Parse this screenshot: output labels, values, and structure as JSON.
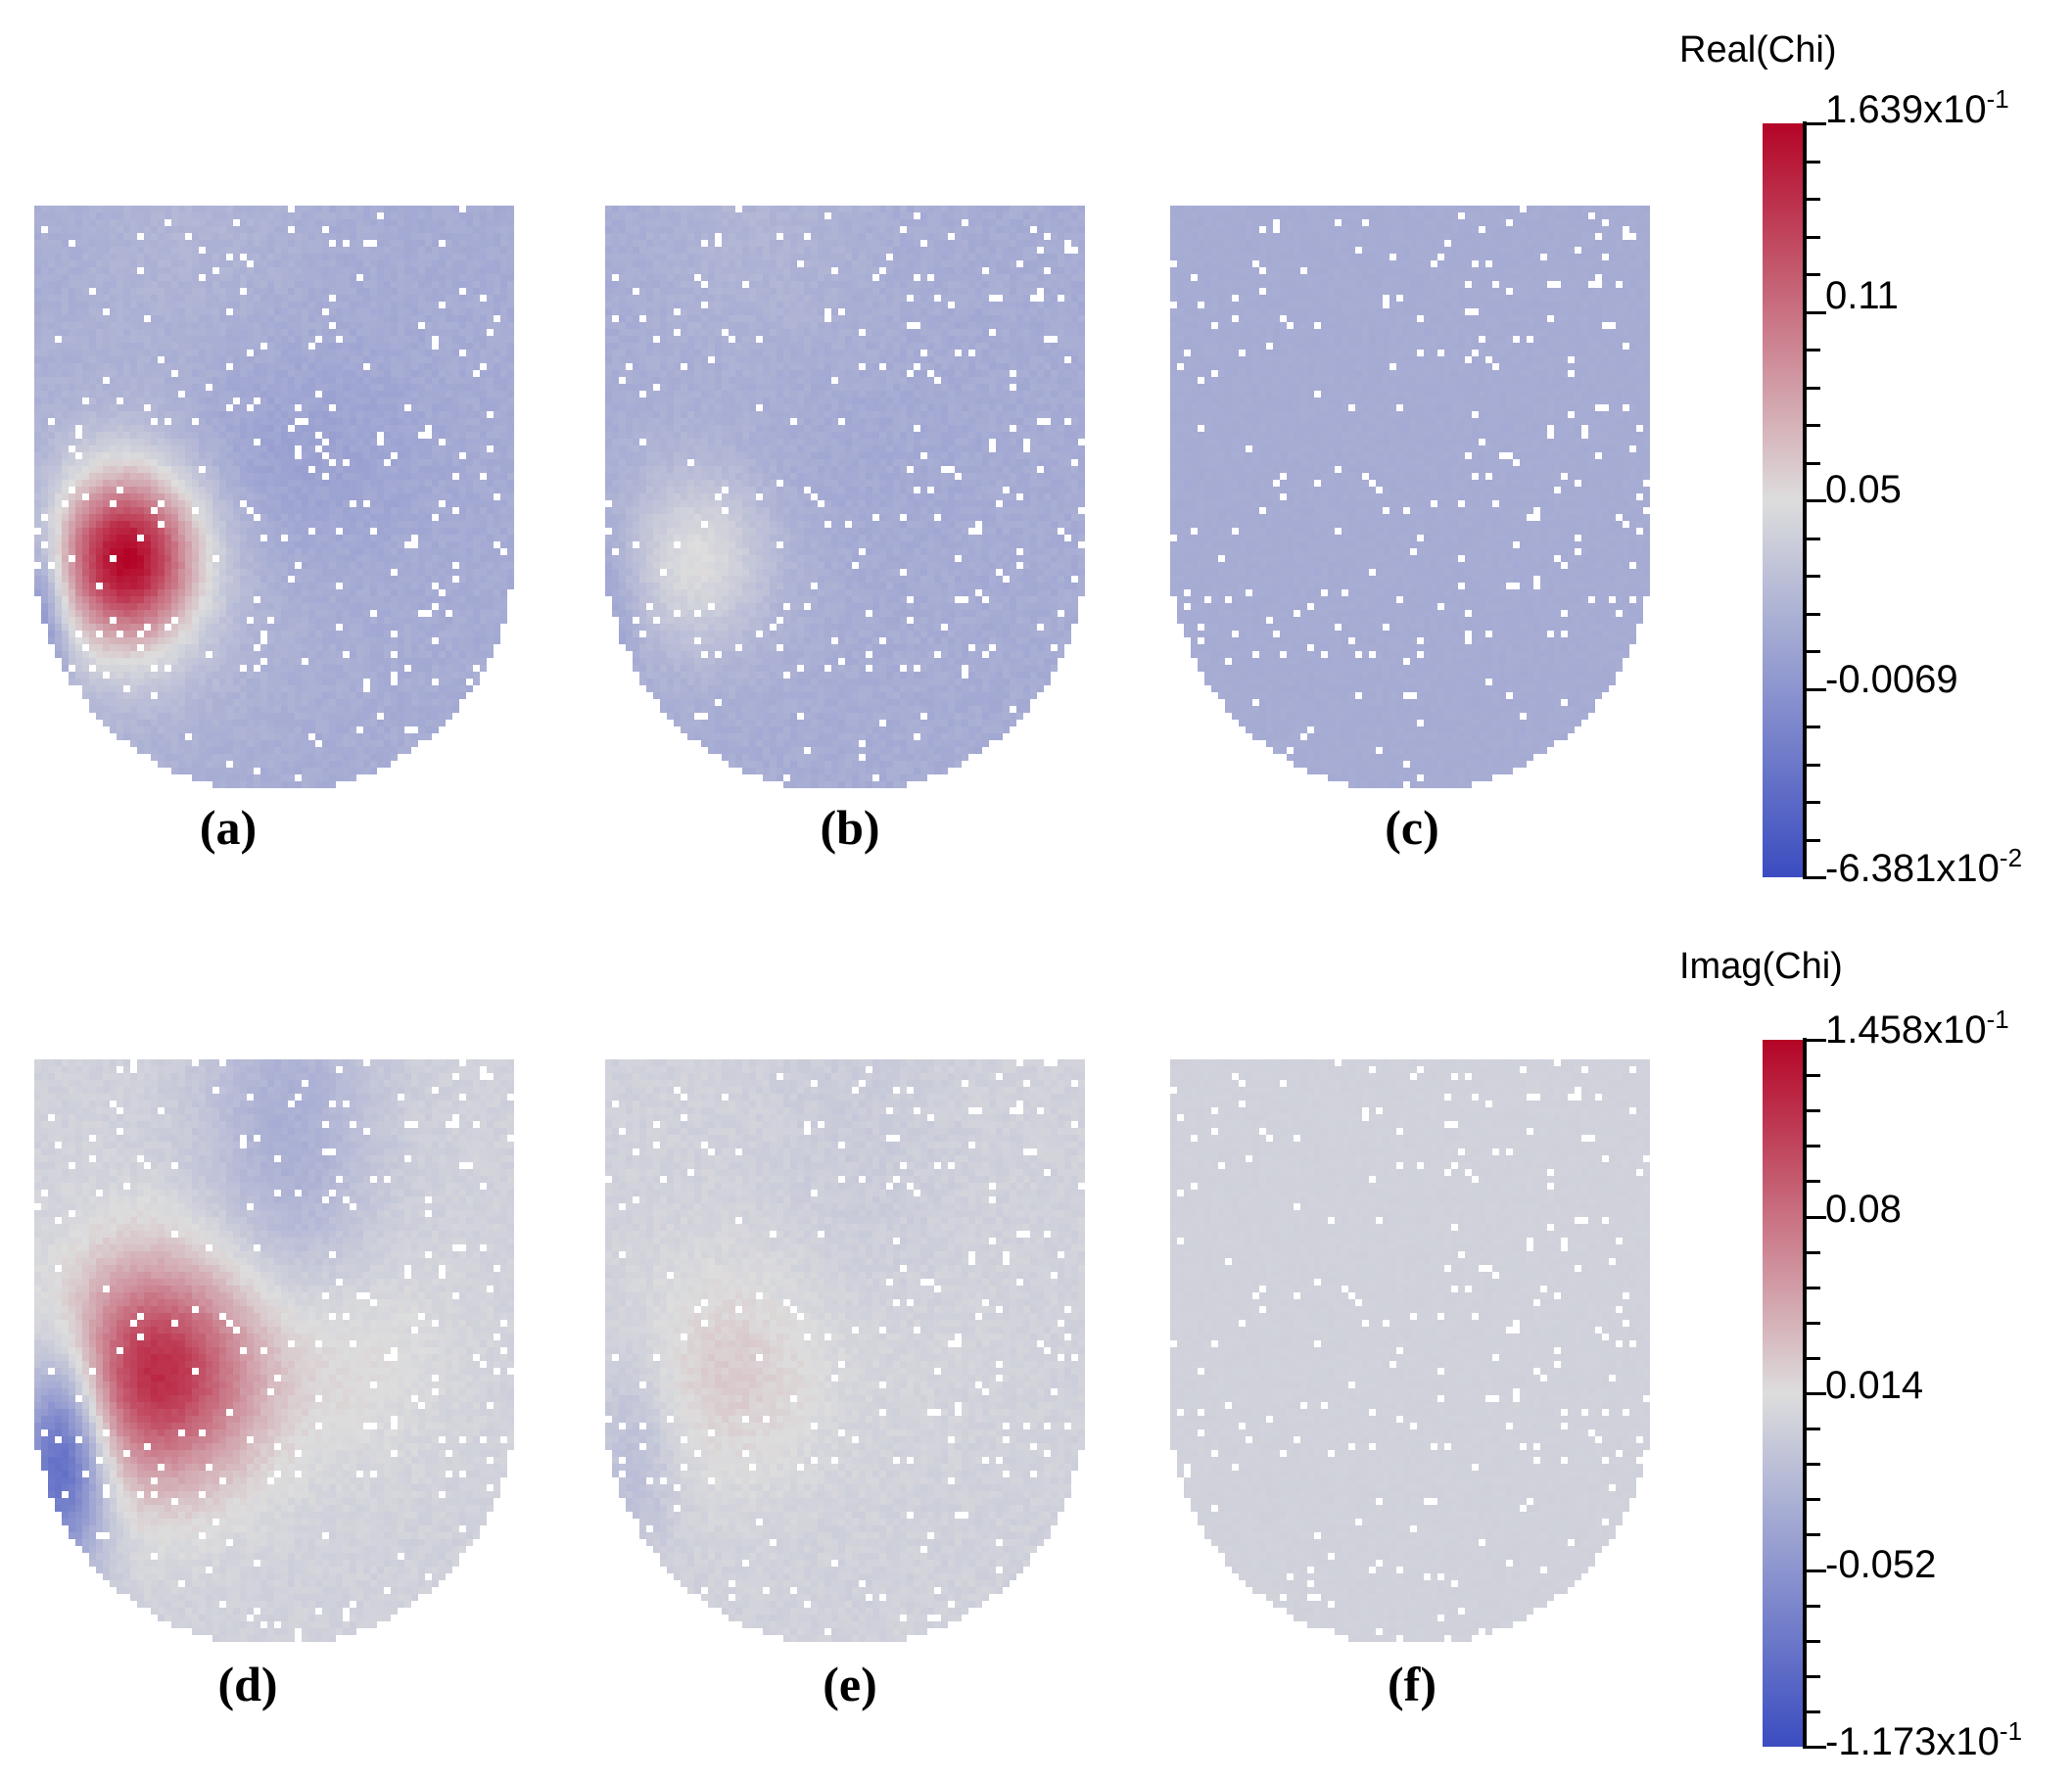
{
  "panels": [
    {
      "id": "a",
      "label": "(a)",
      "field": "real",
      "scale": 1.0
    },
    {
      "id": "b",
      "label": "(b)",
      "field": "real",
      "scale": 0.25
    },
    {
      "id": "c",
      "label": "(c)",
      "field": "real",
      "scale": 0.0
    },
    {
      "id": "d",
      "label": "(d)",
      "field": "imag",
      "scale": 1.0
    },
    {
      "id": "e",
      "label": "(e)",
      "field": "imag",
      "scale": 0.18
    },
    {
      "id": "f",
      "label": "(f)",
      "field": "imag",
      "scale": 0.0
    }
  ],
  "colorbars": {
    "real": {
      "title": "Real(Chi)",
      "max_label": {
        "base": "1.639x10",
        "exp": "-1"
      },
      "min_label": {
        "base": "-6.381x10",
        "exp": "-2"
      },
      "mid_labels": [
        "0.11",
        "0.05",
        "-0.0069"
      ]
    },
    "imag": {
      "title": "Imag(Chi)",
      "max_label": {
        "base": "1.458x10",
        "exp": "-1"
      },
      "min_label": {
        "base": "-1.173x10",
        "exp": "-1"
      },
      "mid_labels": [
        "0.08",
        "0.014",
        "-0.052"
      ]
    }
  },
  "colormap": {
    "low": "#3b4cc0",
    "mid": "#dddddd",
    "high": "#b40426"
  }
}
